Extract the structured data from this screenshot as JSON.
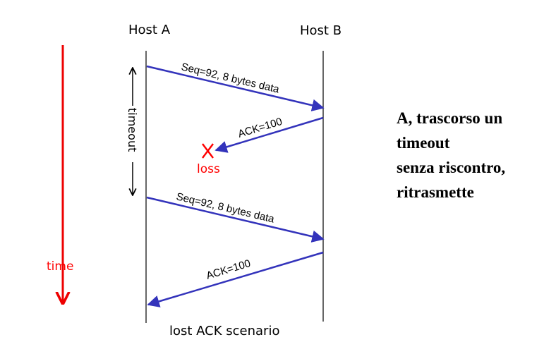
{
  "hosts": {
    "a": "Host A",
    "b": "Host B"
  },
  "messages": [
    {
      "label": "Seq=92, 8 bytes data",
      "from": "Host A",
      "to": "Host B",
      "lost": false
    },
    {
      "label": "ACK=100",
      "from": "Host B",
      "to": "Host A",
      "lost": true
    },
    {
      "label": "Seq=92, 8 bytes data",
      "from": "Host A",
      "to": "Host B",
      "lost": false
    },
    {
      "label": "ACK=100",
      "from": "Host B",
      "to": "Host A",
      "lost": false
    }
  ],
  "loss_marker": {
    "symbol": "X",
    "label": "loss"
  },
  "timeout_label": "timeout",
  "time_label": "time",
  "caption": "lost ACK scenario",
  "note_lines": [
    "A, trascorso un",
    "timeout",
    "senza riscontro,",
    "ritrasmette"
  ],
  "colors": {
    "arrow": "#3333bb",
    "time": "#ee0000",
    "loss": "#ff0000",
    "lines": "#000000"
  }
}
